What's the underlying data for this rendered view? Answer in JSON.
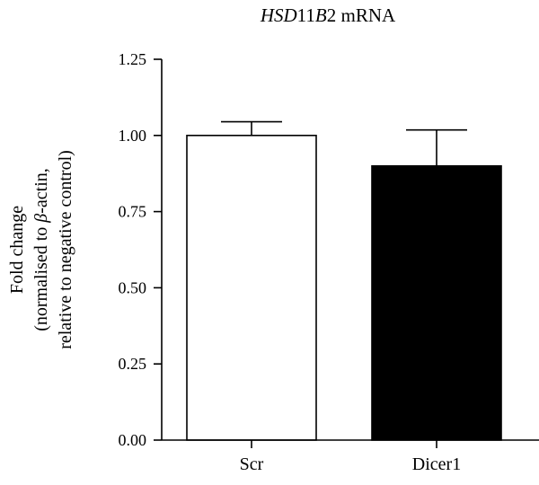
{
  "chart_data": {
    "type": "bar",
    "title_parts": [
      {
        "text": "HSD",
        "italic": true
      },
      {
        "text": "11",
        "italic": false
      },
      {
        "text": "B",
        "italic": true
      },
      {
        "text": "2 mRNA",
        "italic": false
      }
    ],
    "ylabel_lines": [
      [
        {
          "text": "Fold change",
          "italic": false
        }
      ],
      [
        {
          "text": "(normalised to ",
          "italic": false
        },
        {
          "text": "β",
          "italic": true
        },
        {
          "text": "-actin,",
          "italic": false
        }
      ],
      [
        {
          "text": "relative to negative control)",
          "italic": false
        }
      ]
    ],
    "xlabel": "",
    "categories": [
      "Scr",
      "Dicer1"
    ],
    "values": [
      1.0,
      0.9
    ],
    "errors": [
      0.045,
      0.118
    ],
    "bar_fill": [
      "#ffffff",
      "#000000"
    ],
    "bar_stroke": "#000000",
    "ylim": [
      0,
      1.25
    ],
    "yticks": [
      "0.00",
      "0.25",
      "0.50",
      "0.75",
      "1.00",
      "1.25"
    ],
    "grid": false,
    "legend": "none"
  }
}
